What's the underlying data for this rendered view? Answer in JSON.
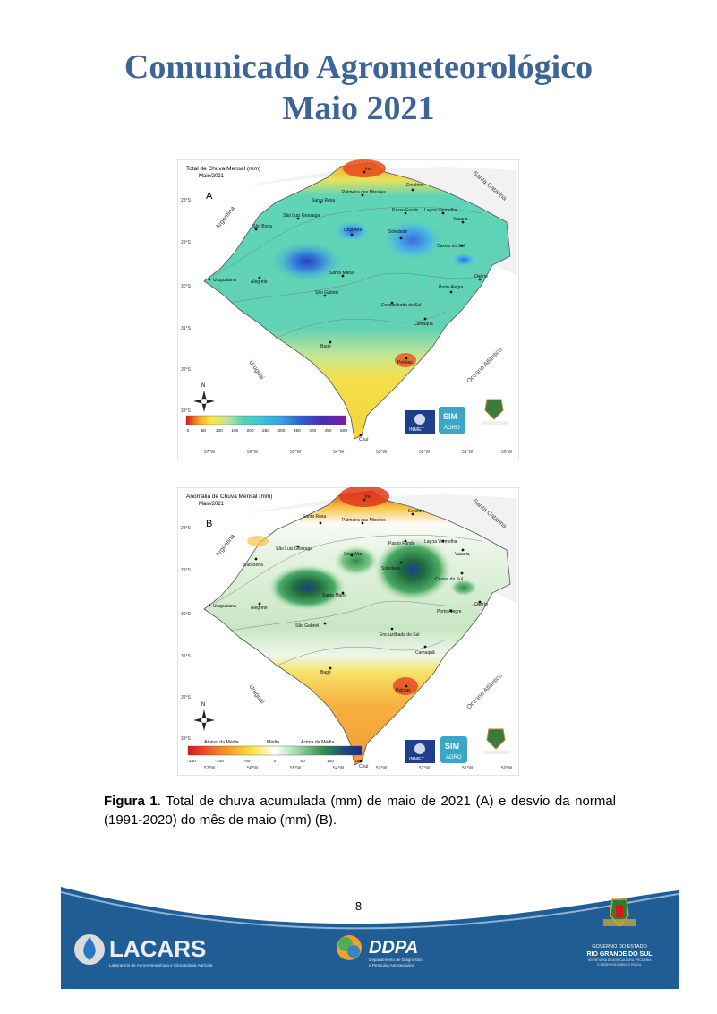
{
  "colors": {
    "title": "#3c6496",
    "footer_blue": "#1f5d94",
    "footer_dark": "#174a78"
  },
  "header": {
    "line1": "Comunicado Agrometeorológico",
    "line2": "Maio 2021"
  },
  "map_a": {
    "title": "Total de Chuva Mensal (mm)",
    "subtitle": "Maio/2021",
    "letter": "A",
    "colorbar_ticks": [
      "0",
      "50",
      "100",
      "150",
      "200",
      "250",
      "300",
      "350",
      "400",
      "450",
      "500"
    ]
  },
  "map_b": {
    "title": "Anomalia de Chuva Mensal (mm)",
    "subtitle": "Maio/2021",
    "letter": "B",
    "legend_labels": [
      "Abaixo da Média",
      "Média",
      "Acima da Média"
    ],
    "colorbar_ticks": [
      "-150",
      "-100",
      "-50",
      "0",
      "50",
      "100",
      "150"
    ]
  },
  "common": {
    "lat_ticks": [
      "28°S",
      "29°S",
      "30°S",
      "31°S",
      "32°S",
      "33°S"
    ],
    "lon_ticks": [
      "57°W",
      "56°W",
      "55°W",
      "54°W",
      "53°W",
      "52°W",
      "51°W",
      "50°W"
    ],
    "north": "N",
    "regions": [
      "Argentina",
      "Uruguai",
      "Santa Catarina",
      "Oceano Atlântico"
    ],
    "cities": [
      "Iraí",
      "Palmeira das Missões",
      "Erechim",
      "Santa Rosa",
      "São Luiz Gonzaga",
      "Passo Fundo",
      "Lagoa Vermelha",
      "Vacaria",
      "São Borja",
      "Cruz Alta",
      "Soledade",
      "Caxias do Sul",
      "Santa Maria",
      "Uruguaiana",
      "Alegrete",
      "Porto Alegre",
      "Osório",
      "São Gabriel",
      "Encruzilhada do Sul",
      "Camaquã",
      "Bagé",
      "Pelotas",
      "Chuí"
    ],
    "logos": {
      "inmet": "INMET",
      "sim": "SIM",
      "agro": "AGRO",
      "gov": "GOVERNO DO ESTADO RIO GRANDE DO SUL"
    }
  },
  "caption": {
    "label": "Figura 1",
    "text": ". Total de chuva acumulada (mm) de maio de 2021 (A) e desvio da normal (1991-2020) do mês de maio (mm) (B)."
  },
  "page_number": "8",
  "footer": {
    "lacars": "LACARS",
    "lacars_sub": "Laboratório de Agrometeorologia e Climatologia Agrícola",
    "ddpa": "DDPA",
    "ddpa_sub1": "Departamento de Diagnóstico",
    "ddpa_sub2": "e Pesquisa Agropecuária",
    "gov1": "GOVERNO DO ESTADO",
    "gov2": "RIO GRANDE DO SUL",
    "gov3": "SECRETARIA DA AGRICULTURA, PECUÁRIA",
    "gov4": "E DESENVOLVIMENTO RURAL"
  }
}
